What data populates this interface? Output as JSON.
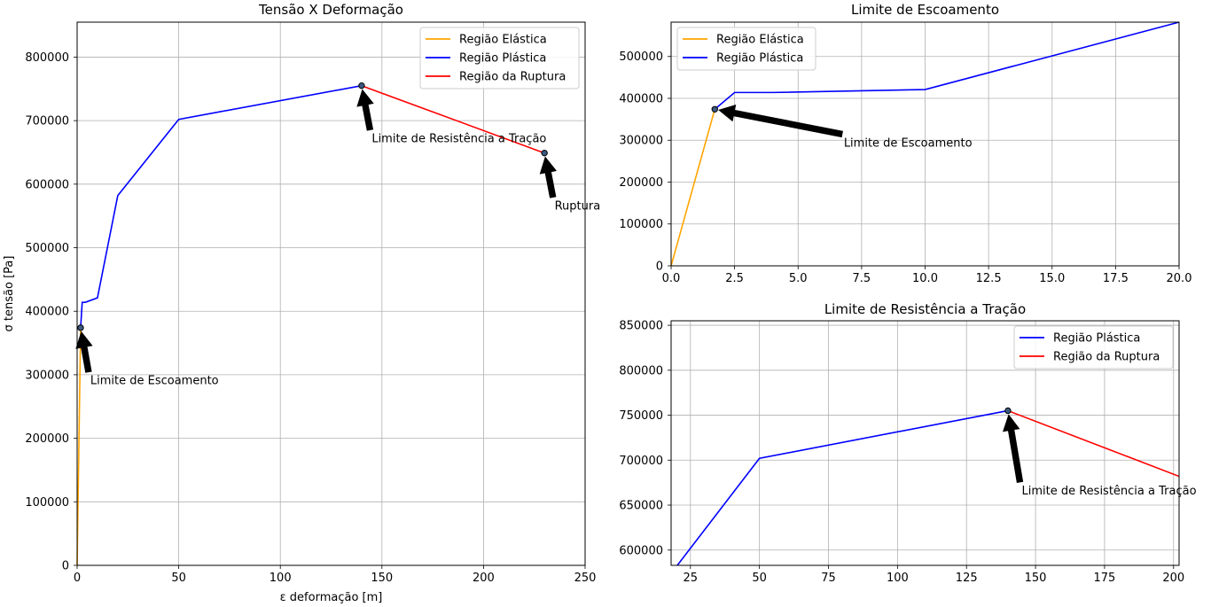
{
  "chart_data": [
    {
      "type": "line",
      "title": "Tensão X Deformação",
      "xlabel": "ε deformação [m]",
      "ylabel": "σ tensão [Pa]",
      "xlim": [
        0,
        250
      ],
      "ylim": [
        0,
        855000
      ],
      "xticks": [
        0,
        50,
        100,
        150,
        200,
        250
      ],
      "xtick_labels": [
        "0",
        "50",
        "100",
        "150",
        "200",
        "250"
      ],
      "yticks": [
        0,
        100000,
        200000,
        300000,
        400000,
        500000,
        600000,
        700000,
        800000
      ],
      "ytick_labels": [
        "0",
        "100000",
        "200000",
        "300000",
        "400000",
        "500000",
        "600000",
        "700000",
        "800000"
      ],
      "grid": true,
      "legend": "top-right",
      "series": [
        {
          "name": "Região Elástica",
          "color": "#ffa500",
          "x": [
            0,
            1.72
          ],
          "y": [
            0,
            374000
          ]
        },
        {
          "name": "Região Plástica",
          "color": "#0000ff",
          "x": [
            1.72,
            2.5,
            4,
            10,
            20,
            50,
            140
          ],
          "y": [
            374000,
            414000,
            414000,
            421000,
            582000,
            702000,
            755000
          ]
        },
        {
          "name": "Região da Ruptura",
          "color": "#ff0000",
          "x": [
            140,
            230
          ],
          "y": [
            755000,
            649000
          ]
        }
      ],
      "markers": [
        {
          "x": 1.72,
          "y": 374000
        },
        {
          "x": 140,
          "y": 755000
        },
        {
          "x": 230,
          "y": 649000
        }
      ],
      "annotations": [
        {
          "text": "Limite de Escoamento",
          "x": 1.72,
          "y": 374000,
          "text_x": 6.5,
          "text_y": 285000
        },
        {
          "text": "Limite de Resistência a Tração",
          "x": 140,
          "y": 755000,
          "text_x": 145,
          "text_y": 666000
        },
        {
          "text": "Ruptura",
          "x": 230,
          "y": 649000,
          "text_x": 235,
          "text_y": 560000
        }
      ]
    },
    {
      "type": "line",
      "title": "Limite de Escoamento",
      "xlabel": "",
      "ylabel": "",
      "xlim": [
        0,
        20
      ],
      "ylim": [
        0,
        582000
      ],
      "xticks": [
        0,
        2.5,
        5,
        7.5,
        10,
        12.5,
        15,
        17.5,
        20
      ],
      "xtick_labels": [
        "0.0",
        "2.5",
        "5.0",
        "7.5",
        "10.0",
        "12.5",
        "15.0",
        "17.5",
        "20.0"
      ],
      "yticks": [
        0,
        100000,
        200000,
        300000,
        400000,
        500000
      ],
      "ytick_labels": [
        "0",
        "100000",
        "200000",
        "300000",
        "400000",
        "500000"
      ],
      "grid": true,
      "legend": "top-left",
      "series": [
        {
          "name": "Região Elástica",
          "color": "#ffa500",
          "x": [
            0,
            1.72
          ],
          "y": [
            0,
            374000
          ]
        },
        {
          "name": "Região Plástica",
          "color": "#0000ff",
          "x": [
            1.72,
            2.5,
            4,
            10,
            20
          ],
          "y": [
            374000,
            414000,
            414000,
            421000,
            582000
          ]
        }
      ],
      "markers": [
        {
          "x": 1.72,
          "y": 374000
        }
      ],
      "annotations": [
        {
          "text": "Limite de Escoamento",
          "x": 1.72,
          "y": 374000,
          "text_x": 6.8,
          "text_y": 285000
        }
      ]
    },
    {
      "type": "line",
      "title": "Limite de Resistência a Tração",
      "xlabel": "",
      "ylabel": "",
      "xlim": [
        18,
        202
      ],
      "ylim": [
        583000,
        855000
      ],
      "xticks": [
        25,
        50,
        75,
        100,
        125,
        150,
        175,
        200
      ],
      "xtick_labels": [
        "25",
        "50",
        "75",
        "100",
        "125",
        "150",
        "175",
        "200"
      ],
      "yticks": [
        600000,
        650000,
        700000,
        750000,
        800000,
        850000
      ],
      "ytick_labels": [
        "600000",
        "650000",
        "700000",
        "750000",
        "800000",
        "850000"
      ],
      "grid": true,
      "legend": "top-right",
      "series": [
        {
          "name": "Região Plástica",
          "color": "#0000ff",
          "x": [
            20,
            50,
            140
          ],
          "y": [
            582000,
            702000,
            755000
          ]
        },
        {
          "name": "Região da Ruptura",
          "color": "#ff0000",
          "x": [
            140,
            230
          ],
          "y": [
            755000,
            649000
          ]
        }
      ],
      "markers": [
        {
          "x": 140,
          "y": 755000
        }
      ],
      "annotations": [
        {
          "text": "Limite de Resistência a Tração",
          "x": 140,
          "y": 755000,
          "text_x": 145,
          "text_y": 662000
        }
      ]
    }
  ]
}
